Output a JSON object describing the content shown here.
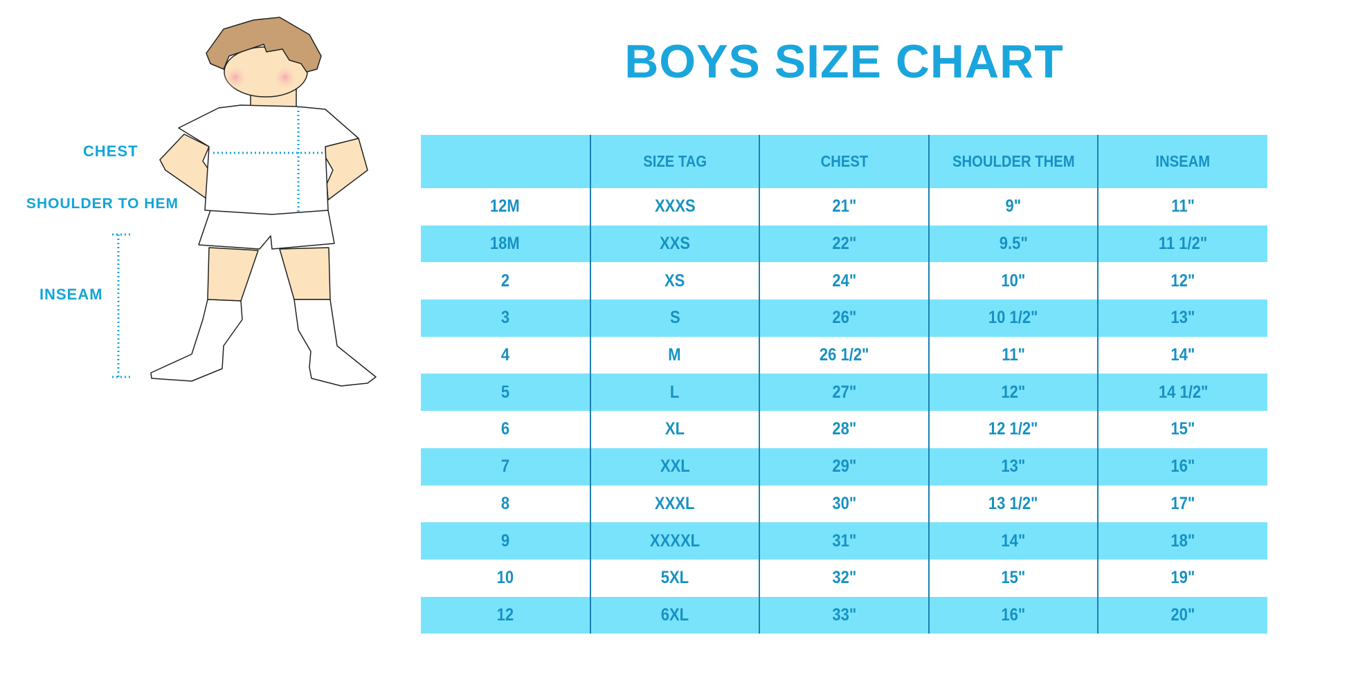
{
  "title": "BOYS SIZE CHART",
  "figure_labels": {
    "chest": "CHEST",
    "shoulder_to_hem": "SHOULDER TO HEM",
    "inseam": "INSEAM"
  },
  "colors": {
    "accent": "#1aa6dc",
    "row_fill": "#7ae3fc",
    "text": "#1791c2",
    "divider": "#1a7fb0"
  },
  "table": {
    "headers": [
      "",
      "SIZE TAG",
      "CHEST",
      "SHOULDER THEM",
      "INSEAM"
    ],
    "rows": [
      [
        "12M",
        "XXXS",
        "21\"",
        "9\"",
        "11\""
      ],
      [
        "18M",
        "XXS",
        "22\"",
        "9.5\"",
        "11 1/2\""
      ],
      [
        "2",
        "XS",
        "24\"",
        "10\"",
        "12\""
      ],
      [
        "3",
        "S",
        "26\"",
        "10 1/2\"",
        "13\""
      ],
      [
        "4",
        "M",
        "26 1/2\"",
        "11\"",
        "14\""
      ],
      [
        "5",
        "L",
        "27\"",
        "12\"",
        "14 1/2\""
      ],
      [
        "6",
        "XL",
        "28\"",
        "12 1/2\"",
        "15\""
      ],
      [
        "7",
        "XXL",
        "29\"",
        "13\"",
        "16\""
      ],
      [
        "8",
        "XXXL",
        "30\"",
        "13 1/2\"",
        "17\""
      ],
      [
        "9",
        "XXXXL",
        "31\"",
        "14\"",
        "18\""
      ],
      [
        "10",
        "5XL",
        "32\"",
        "15\"",
        "19\""
      ],
      [
        "12",
        "6XL",
        "33\"",
        "16\"",
        "20\""
      ]
    ]
  }
}
